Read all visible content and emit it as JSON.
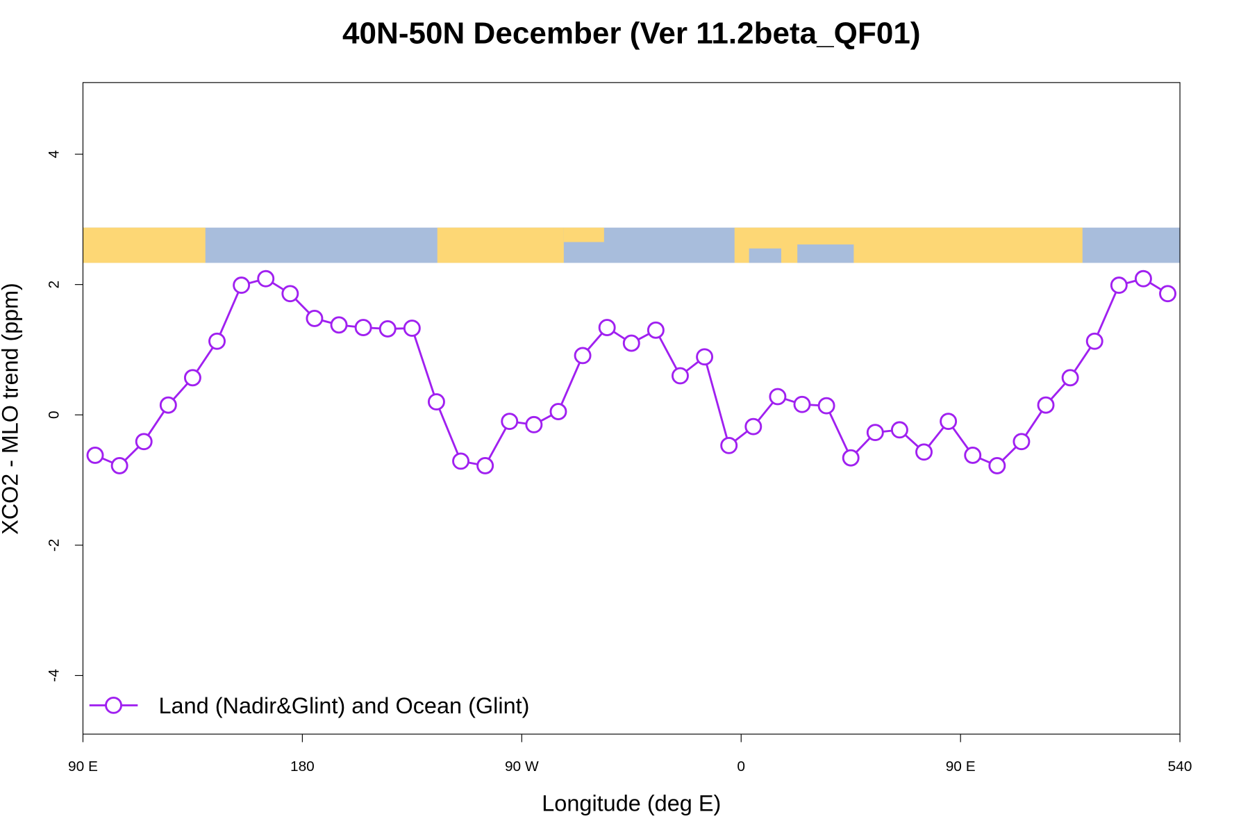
{
  "chart_data": {
    "type": "line",
    "title": "40N-50N December (Ver 11.2beta_QF01)",
    "x_label": "Longitude (deg E)",
    "y_label": "XCO2 - MLO trend (ppm)",
    "x": [
      95,
      105,
      115,
      125,
      135,
      145,
      155,
      165,
      175,
      185,
      195,
      205,
      215,
      225,
      235,
      245,
      255,
      265,
      275,
      285,
      295,
      305,
      315,
      325,
      335,
      345,
      355,
      365,
      375,
      385,
      395,
      405,
      415,
      425,
      435,
      445,
      455,
      465,
      475,
      485,
      495,
      505,
      515,
      525,
      535
    ],
    "series": [
      {
        "name": "Land (Nadir&Glint) and Ocean (Glint)",
        "color": "#a020f0",
        "values": [
          -0.62,
          -0.78,
          -0.41,
          0.15,
          0.57,
          1.13,
          1.99,
          2.09,
          1.86,
          1.48,
          1.38,
          1.34,
          1.32,
          1.33,
          0.2,
          -0.71,
          -0.78,
          -0.1,
          -0.15,
          0.05,
          0.91,
          1.34,
          1.1,
          1.3,
          0.6,
          0.89,
          -0.47,
          -0.18,
          0.28,
          0.16,
          0.14,
          -0.66,
          -0.27,
          -0.23,
          -0.57,
          -0.1,
          -0.62,
          -0.78,
          -0.41,
          0.15,
          0.57,
          1.13,
          1.99,
          2.09,
          1.86
        ]
      }
    ],
    "xlim": [
      90,
      540
    ],
    "xticks": [
      {
        "value": 90,
        "label": "90 E"
      },
      180,
      {
        "value": 270,
        "label": "90 W"
      },
      {
        "value": 360,
        "label": "0"
      },
      {
        "value": 450,
        "label": "90 E"
      },
      540
    ],
    "ylim": [
      -4.9,
      5.1
    ],
    "yticks": [
      -4,
      -2,
      0,
      2,
      4
    ],
    "legend": "bottom-left"
  }
}
